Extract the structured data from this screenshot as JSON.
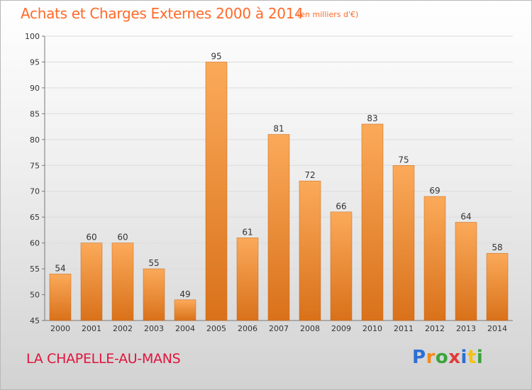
{
  "header": {
    "title": "Achats et Charges Externes 2000 à 2014",
    "subtitle": "(en milliers d'€)"
  },
  "footer": {
    "place": "LA CHAPELLE-AU-MANS",
    "logo": "Proxiti"
  },
  "colors": {
    "bar_light": "#fbaa5a",
    "bar_dark": "#d9711a",
    "title": "#ff6a2a",
    "place": "#e0143c"
  },
  "chart_data": {
    "type": "bar",
    "categories": [
      "2000",
      "2001",
      "2002",
      "2003",
      "2004",
      "2005",
      "2006",
      "2007",
      "2008",
      "2009",
      "2010",
      "2011",
      "2012",
      "2013",
      "2014"
    ],
    "values": [
      54,
      60,
      60,
      55,
      49,
      95,
      61,
      81,
      72,
      66,
      83,
      75,
      69,
      64,
      58
    ],
    "ylim": [
      45,
      100
    ],
    "yticks": [
      45,
      50,
      55,
      60,
      65,
      70,
      75,
      80,
      85,
      90,
      95,
      100
    ],
    "grid": true
  }
}
